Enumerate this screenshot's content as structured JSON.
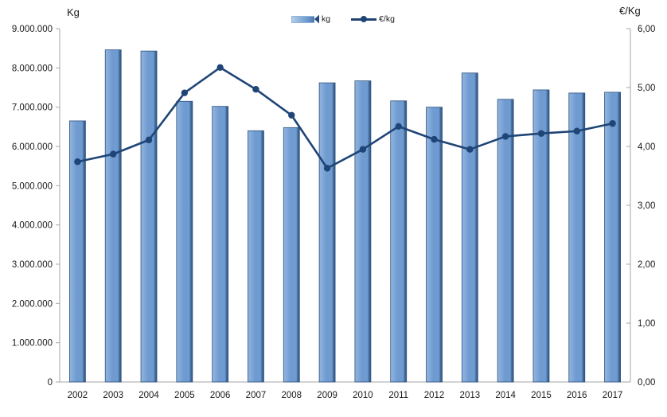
{
  "page": {
    "background": "#ffffff"
  },
  "chart_data": {
    "type": "bar",
    "subtype": "combo bar + line, dual y-axes",
    "categories": [
      "2002",
      "2003",
      "2004",
      "2005",
      "2006",
      "2007",
      "2008",
      "2009",
      "2010",
      "2011",
      "2012",
      "2013",
      "2014",
      "2015",
      "2016",
      "2017"
    ],
    "series": [
      {
        "name": "kg",
        "type": "bar",
        "axis": "left",
        "values": [
          6650000,
          8460000,
          8430000,
          7150000,
          7020000,
          6400000,
          6480000,
          7620000,
          7670000,
          7160000,
          7000000,
          7870000,
          7200000,
          7440000,
          7360000,
          7380000
        ]
      },
      {
        "name": "€/kg",
        "type": "line",
        "axis": "right",
        "values": [
          3.74,
          3.87,
          4.11,
          4.91,
          5.34,
          4.97,
          4.53,
          3.63,
          3.95,
          4.34,
          4.12,
          3.95,
          4.17,
          4.22,
          4.26,
          4.39
        ]
      }
    ],
    "left_axis": {
      "title": "Kg",
      "min": 0,
      "max": 9000000,
      "step": 1000000,
      "tick_labels": [
        "0",
        "1.000.000",
        "2.000.000",
        "3.000.000",
        "4.000.000",
        "5.000.000",
        "6.000.000",
        "7.000.000",
        "8.000.000",
        "9.000.000"
      ]
    },
    "right_axis": {
      "title": "€/Kg",
      "min": 0,
      "max": 6,
      "step": 1,
      "tick_labels": [
        "0,00",
        "1,00",
        "2,00",
        "3,00",
        "4,00",
        "5,00",
        "6,00"
      ]
    },
    "legend": {
      "position": "top-center",
      "entries": [
        "kg",
        "€/kg"
      ]
    },
    "grid": false
  },
  "colors": {
    "bar_fill_light": "#93b5de",
    "bar_fill": "#6f9bd1",
    "bar_fill_dark": "#446e9f",
    "bar_edge_dark": "#35597f",
    "bar_border": "#2e527e",
    "line": "#1f4577",
    "axis": "#a6a6a6",
    "text": "#1a1a1a"
  }
}
